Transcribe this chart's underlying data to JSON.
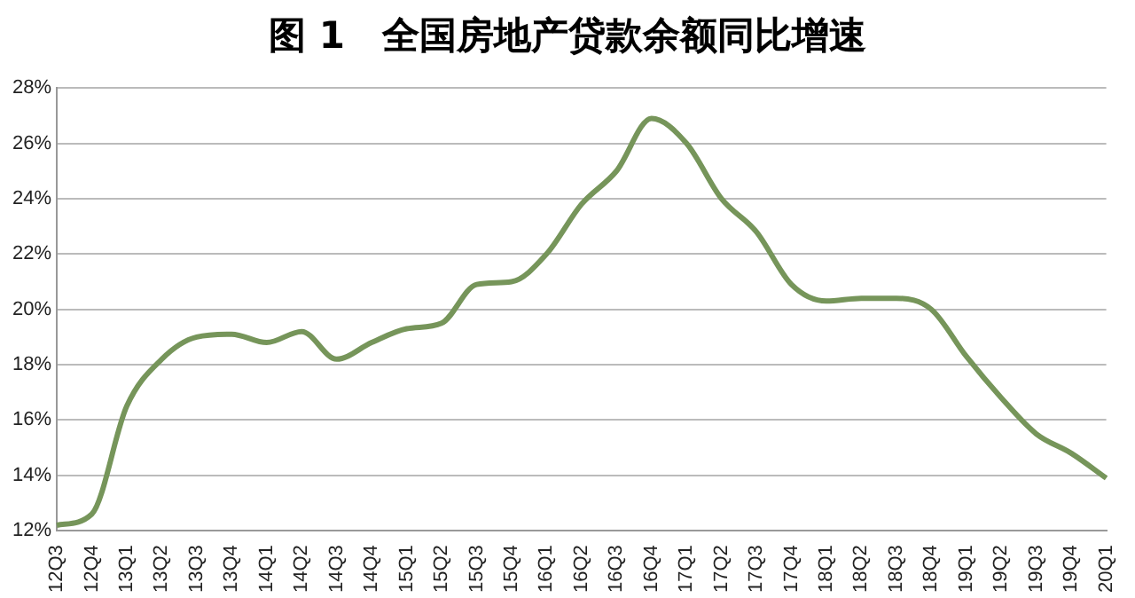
{
  "chart_data": {
    "type": "line",
    "title": "图 1　全国房地产贷款余额同比增速",
    "categories": [
      "12Q3",
      "12Q4",
      "13Q1",
      "13Q2",
      "13Q3",
      "13Q4",
      "14Q1",
      "14Q2",
      "14Q3",
      "14Q4",
      "15Q1",
      "15Q2",
      "15Q3",
      "15Q4",
      "16Q1",
      "16Q2",
      "16Q3",
      "16Q4",
      "17Q1",
      "17Q2",
      "17Q3",
      "17Q4",
      "18Q1",
      "18Q2",
      "18Q3",
      "18Q4",
      "19Q1",
      "19Q2",
      "19Q3",
      "19Q4",
      "20Q1"
    ],
    "series": [
      {
        "color": "#76955a",
        "values": [
          12.2,
          12.6,
          16.5,
          18.2,
          19.0,
          19.1,
          18.8,
          19.2,
          18.2,
          18.8,
          19.3,
          19.5,
          20.9,
          21.0,
          22.0,
          23.8,
          25.0,
          26.9,
          26.0,
          24.0,
          22.8,
          20.9,
          20.3,
          20.4,
          20.4,
          20.0,
          18.3,
          16.8,
          15.5,
          14.8,
          13.9
        ]
      }
    ],
    "ylim": [
      12,
      28
    ],
    "yticks": [
      {
        "value": 12,
        "label": "12%"
      },
      {
        "value": 14,
        "label": "14%"
      },
      {
        "value": 16,
        "label": "16%"
      },
      {
        "value": 18,
        "label": "18%"
      },
      {
        "value": 20,
        "label": "20%"
      },
      {
        "value": 22,
        "label": "22%"
      },
      {
        "value": 24,
        "label": "24%"
      },
      {
        "value": 26,
        "label": "26%"
      },
      {
        "value": 28,
        "label": "28%"
      }
    ],
    "grid": "y",
    "legend": false,
    "marker": "none",
    "line_style": "solid"
  }
}
